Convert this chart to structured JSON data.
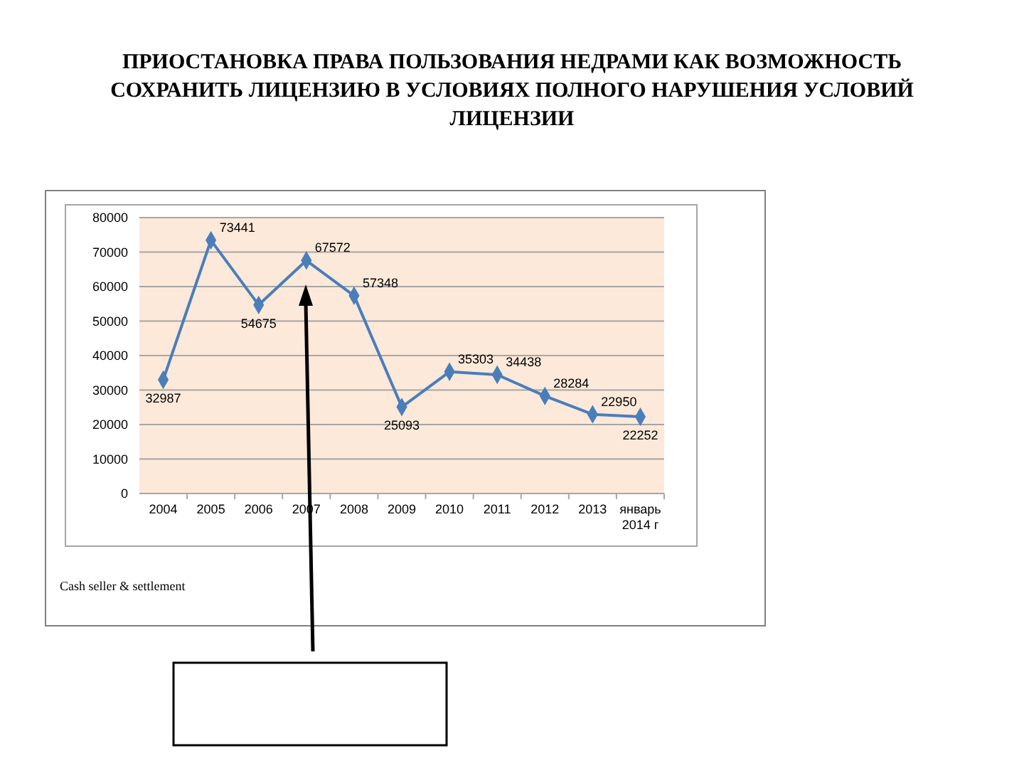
{
  "chart_data": {
    "type": "line",
    "title": "ПРИОСТАНОВКА ПРАВА ПОЛЬЗОВАНИЯ НЕДРАМИ КАК ВОЗМОЖНОСТЬ СОХРАНИТЬ ЛИЦЕНЗИЮ В УСЛОВИЯХ ПОЛНОГО НАРУШЕНИЯ УСЛОВИЙ ЛИЦЕНЗИИ",
    "categories": [
      "2004",
      "2005",
      "2006",
      "2007",
      "2008",
      "2009",
      "2010",
      "2011",
      "2012",
      "2013",
      "январь 2014 г"
    ],
    "series": [
      {
        "color": "#4a7ebb",
        "values": [
          32987,
          73441,
          54675,
          67572,
          57348,
          25093,
          35303,
          34438,
          28284,
          22950,
          22252
        ]
      }
    ],
    "ylim": [
      0,
      80000
    ],
    "yticks": [
      0,
      10000,
      20000,
      30000,
      40000,
      50000,
      60000,
      70000,
      80000
    ],
    "grid": "y",
    "marker": "diamond",
    "line_style": "solid",
    "data_labels": true,
    "annotations": [
      "Cash seller & settlement"
    ]
  }
}
